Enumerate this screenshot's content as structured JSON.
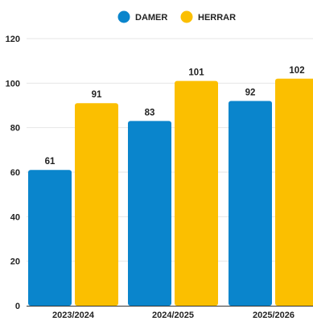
{
  "chart_data": {
    "type": "bar",
    "categories": [
      "2023/2024",
      "2024/2025",
      "2025/2026"
    ],
    "series": [
      {
        "name": "DAMER",
        "color": "#0a85cc",
        "values": [
          61,
          83,
          92
        ]
      },
      {
        "name": "HERRAR",
        "color": "#fbbf00",
        "values": [
          91,
          101,
          102
        ]
      }
    ],
    "ylim": [
      0,
      120
    ],
    "yticks": [
      0,
      20,
      40,
      60,
      80,
      100,
      120
    ],
    "grid": true,
    "legend": "top-center",
    "title": "",
    "xlabel": "",
    "ylabel": ""
  }
}
